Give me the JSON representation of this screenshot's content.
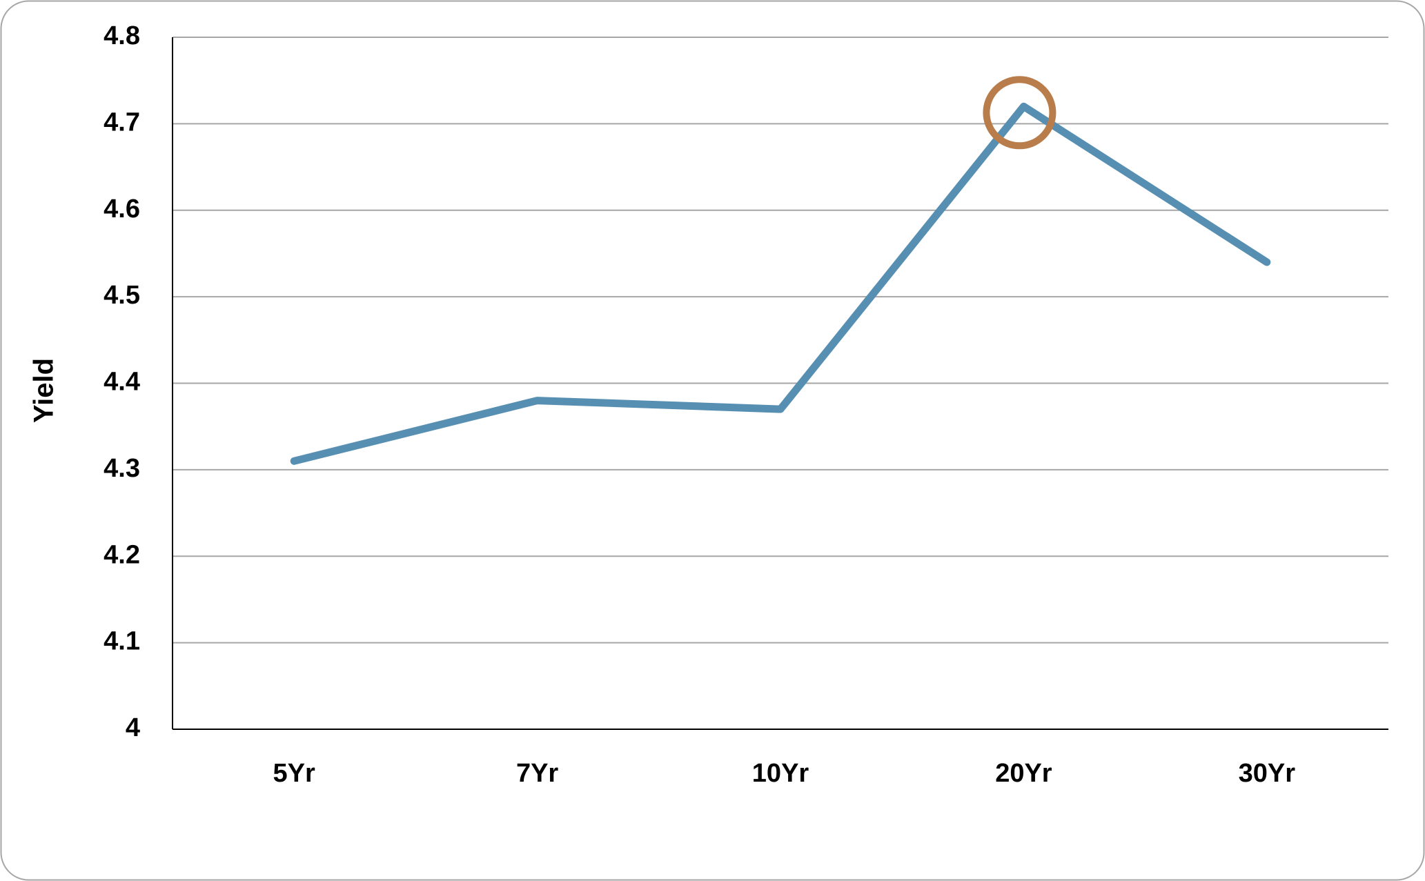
{
  "chart_data": {
    "type": "line",
    "y_label": "Yield",
    "categories": [
      "5Yr",
      "7Yr",
      "10Yr",
      "20Yr",
      "30Yr"
    ],
    "series": [
      {
        "name": "Yield",
        "color": "#578fb2",
        "values": [
          4.31,
          4.38,
          4.37,
          4.72,
          4.54
        ]
      }
    ],
    "ylim": [
      4,
      4.8
    ],
    "yticks": [
      4,
      4.1,
      4.2,
      4.3,
      4.4,
      4.5,
      4.6,
      4.7,
      4.8
    ],
    "grid": true,
    "highlight": {
      "index": 3,
      "color": "#b87d4b"
    }
  }
}
